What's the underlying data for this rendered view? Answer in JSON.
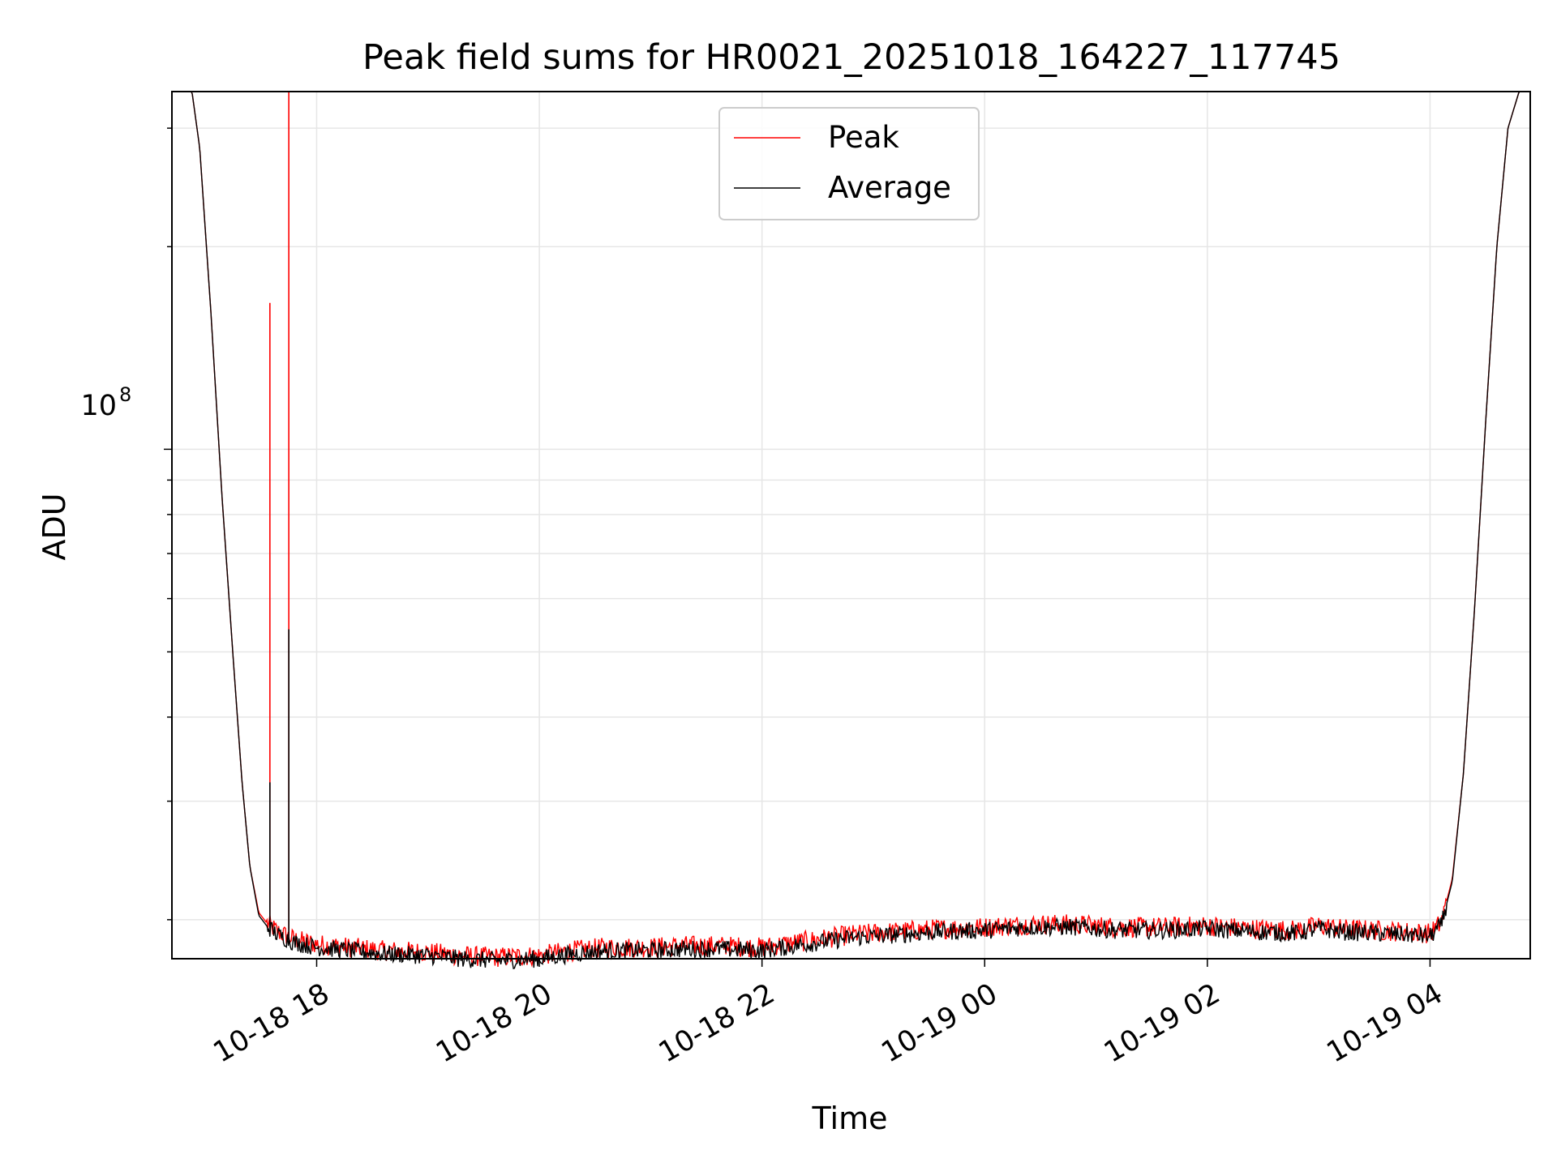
{
  "chart_data": {
    "type": "line",
    "title": "Peak field sums for HR0021_20251018_164227_117745",
    "xlabel": "Time",
    "ylabel": "ADU",
    "yscale": "log",
    "ytick_major": {
      "value": 100000000,
      "base": "10",
      "exponent": "8"
    },
    "ylim": [
      17500000,
      340000000
    ],
    "xlim_hours": [
      16.7,
      28.9
    ],
    "xticks": [
      {
        "hour": 18,
        "label": "10-18 18"
      },
      {
        "hour": 20,
        "label": "10-18 20"
      },
      {
        "hour": 22,
        "label": "10-18 22"
      },
      {
        "hour": 24,
        "label": "10-19 00"
      },
      {
        "hour": 26,
        "label": "10-19 02"
      },
      {
        "hour": 28,
        "label": "10-19 04"
      }
    ],
    "grid": true,
    "legend": {
      "position": "upper center"
    },
    "series": [
      {
        "name": "Peak",
        "color": "#ff0000",
        "x_hours": [
          16.7,
          16.88,
          16.95,
          17.05,
          17.15,
          17.25,
          17.33,
          17.4,
          17.48,
          17.55,
          17.65,
          17.8,
          18.0,
          18.3,
          18.6,
          19.0,
          19.3,
          19.6,
          20.0,
          20.3,
          20.6,
          21.0,
          21.3,
          21.6,
          22.0,
          22.4,
          22.8,
          23.2,
          23.6,
          24.0,
          24.4,
          24.8,
          25.2,
          25.6,
          26.0,
          26.4,
          26.8,
          27.0,
          27.2,
          27.5,
          27.8,
          28.0,
          28.1,
          28.2,
          28.3,
          28.4,
          28.5,
          28.6,
          28.7,
          28.8,
          28.9
        ],
        "values_adu": [
          340000000,
          340000000,
          280000000,
          160000000,
          85000000,
          49000000,
          32000000,
          24000000,
          20500000,
          19800000,
          19200000,
          18700000,
          18400000,
          18200000,
          18000000,
          17900000,
          17700000,
          17600000,
          17700000,
          18000000,
          18200000,
          18200000,
          18300000,
          18300000,
          18200000,
          18600000,
          19000000,
          19200000,
          19400000,
          19500000,
          19700000,
          19700000,
          19500000,
          19500000,
          19600000,
          19400000,
          19300000,
          19600000,
          19400000,
          19300000,
          19200000,
          19100000,
          19800000,
          23000000,
          33000000,
          58000000,
          110000000,
          200000000,
          300000000,
          340000000,
          340000000
        ],
        "spikes": [
          {
            "hour": 17.58,
            "value_adu": 165000000
          },
          {
            "hour": 17.75,
            "value_adu": 340000000
          }
        ]
      },
      {
        "name": "Average",
        "color": "#000000",
        "x_hours": [
          16.7,
          16.88,
          16.95,
          17.05,
          17.15,
          17.25,
          17.33,
          17.4,
          17.48,
          17.55,
          17.65,
          17.8,
          18.0,
          18.3,
          18.6,
          19.0,
          19.3,
          19.6,
          20.0,
          20.3,
          20.6,
          21.0,
          21.3,
          21.6,
          22.0,
          22.4,
          22.8,
          23.2,
          23.6,
          24.0,
          24.4,
          24.8,
          25.2,
          25.6,
          26.0,
          26.4,
          26.8,
          27.0,
          27.2,
          27.5,
          27.8,
          28.0,
          28.1,
          28.2,
          28.3,
          28.4,
          28.5,
          28.6,
          28.7,
          28.8,
          28.9
        ],
        "values_adu": [
          340000000,
          340000000,
          280000000,
          160000000,
          85000000,
          49000000,
          32000000,
          24000000,
          20300000,
          19600000,
          19000000,
          18500000,
          18200000,
          18000000,
          17800000,
          17700000,
          17500000,
          17400000,
          17500000,
          17800000,
          18000000,
          18000000,
          18100000,
          18100000,
          18000000,
          18400000,
          18800000,
          19000000,
          19200000,
          19300000,
          19500000,
          19500000,
          19300000,
          19300000,
          19400000,
          19200000,
          19100000,
          19400000,
          19200000,
          19100000,
          19000000,
          18900000,
          19600000,
          22800000,
          33000000,
          58000000,
          110000000,
          200000000,
          300000000,
          340000000,
          340000000
        ],
        "spikes": [
          {
            "hour": 17.58,
            "value_adu": 32000000
          },
          {
            "hour": 17.75,
            "value_adu": 54000000
          }
        ]
      }
    ]
  }
}
